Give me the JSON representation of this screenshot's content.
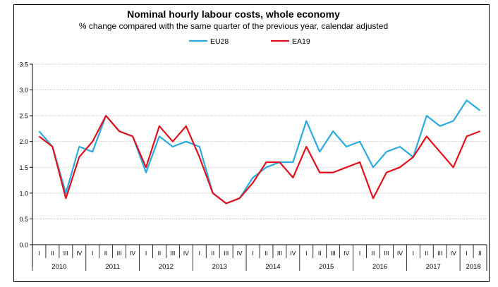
{
  "chart_data": {
    "type": "line",
    "title": "Nominal hourly labour costs, whole economy",
    "subtitle": "% change compared with the same quarter of the previous year, calendar adjusted",
    "xlabel": "",
    "ylabel": "",
    "ylim": [
      0.0,
      3.5
    ],
    "yticks": [
      "0.0",
      "0.5",
      "1.0",
      "1.5",
      "2.0",
      "2.5",
      "3.0",
      "3.5"
    ],
    "grid": true,
    "legend_position": "top-center",
    "quarter_labels": [
      "I",
      "II",
      "III",
      "IV"
    ],
    "years": [
      "2010",
      "2011",
      "2012",
      "2013",
      "2014",
      "2015",
      "2016",
      "2017",
      "2018"
    ],
    "categories": [
      "2010 I",
      "2010 II",
      "2010 III",
      "2010 IV",
      "2011 I",
      "2011 II",
      "2011 III",
      "2011 IV",
      "2012 I",
      "2012 II",
      "2012 III",
      "2012 IV",
      "2013 I",
      "2013 II",
      "2013 III",
      "2013 IV",
      "2014 I",
      "2014 II",
      "2014 III",
      "2014 IV",
      "2015 I",
      "2015 II",
      "2015 III",
      "2015 IV",
      "2016 I",
      "2016 II",
      "2016 III",
      "2016 IV",
      "2017 I",
      "2017 II",
      "2017 III",
      "2017 IV",
      "2018 I",
      "2018 II"
    ],
    "series": [
      {
        "name": "EU28",
        "color": "#29abe2",
        "values": [
          2.2,
          1.9,
          1.0,
          1.9,
          1.8,
          2.5,
          2.2,
          2.1,
          1.4,
          2.1,
          1.9,
          2.0,
          1.9,
          1.0,
          0.8,
          0.9,
          1.3,
          1.5,
          1.6,
          1.6,
          2.4,
          1.8,
          2.2,
          1.9,
          2.0,
          1.5,
          1.8,
          1.9,
          1.7,
          2.5,
          2.3,
          2.4,
          2.8,
          2.6
        ]
      },
      {
        "name": "EA19",
        "color": "#e3101b",
        "values": [
          2.1,
          1.9,
          0.9,
          1.7,
          2.0,
          2.5,
          2.2,
          2.1,
          1.5,
          2.3,
          2.0,
          2.3,
          1.7,
          1.0,
          0.8,
          0.9,
          1.2,
          1.6,
          1.6,
          1.3,
          1.9,
          1.4,
          1.4,
          1.5,
          1.6,
          0.9,
          1.4,
          1.5,
          1.7,
          2.1,
          1.8,
          1.5,
          2.1,
          2.2
        ]
      }
    ]
  }
}
